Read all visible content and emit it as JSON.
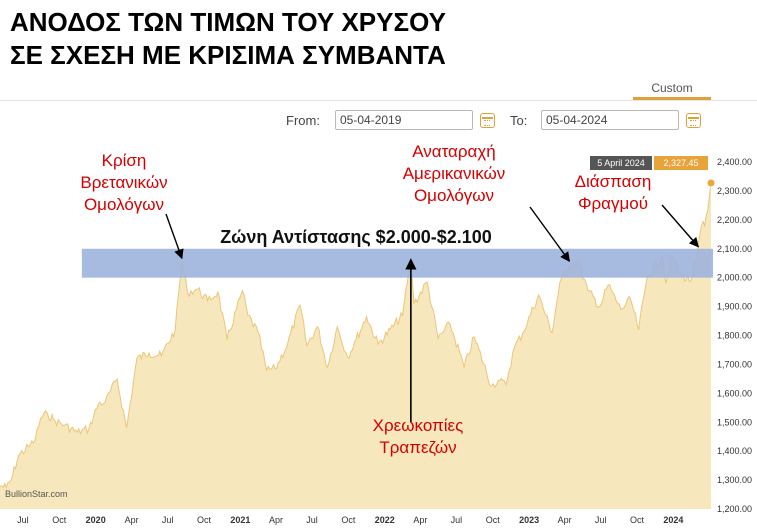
{
  "title": {
    "line1": "ΑΝΟΔΟΣ ΤΩΝ ΤΙΜΩΝ ΤΟΥ ΧΡΥΣΟΥ",
    "line2": "ΣΕ ΣΧΕΣΗ ΜΕ ΚΡΙΣΙΜΑ ΣΥΜΒΑΝΤΑ"
  },
  "controls": {
    "custom_tab": "Custom",
    "from_label": "From:",
    "from_value": "05-04-2019",
    "to_label": "To:",
    "to_value": "05-04-2024"
  },
  "watermark": "BullionStar.com",
  "tooltip": {
    "date": "5 April 2024",
    "value": "2,327.45"
  },
  "colors": {
    "fill": "#f7e7bd",
    "line": "#edc57a",
    "zone": "#9db3dc",
    "annotation": "#d40000",
    "marker": "#f0a43c",
    "tooltip_value_bg": "#e8a33a"
  },
  "chart_data": {
    "type": "area",
    "x_range": [
      "2019-05-04",
      "2024-04-05"
    ],
    "ylim": [
      1200,
      2400
    ],
    "y_ticks": [
      1200,
      1300,
      1400,
      1500,
      1600,
      1700,
      1800,
      1900,
      2000,
      2100,
      2200,
      2300,
      2400
    ],
    "y_tick_labels": [
      "1,200.00",
      "1,300.00",
      "1,400.00",
      "1,500.00",
      "1,600.00",
      "1,700.00",
      "1,800.00",
      "1,900.00",
      "2,000.00",
      "2,100.00",
      "2,200.00",
      "2,300.00",
      "2,400.00"
    ],
    "x_ticks": [
      {
        "date": "2019-07-01",
        "label": "Jul",
        "year": false
      },
      {
        "date": "2019-10-01",
        "label": "Oct",
        "year": false
      },
      {
        "date": "2020-01-01",
        "label": "2020",
        "year": true
      },
      {
        "date": "2020-04-01",
        "label": "Apr",
        "year": false
      },
      {
        "date": "2020-07-01",
        "label": "Jul",
        "year": false
      },
      {
        "date": "2020-10-01",
        "label": "Oct",
        "year": false
      },
      {
        "date": "2021-01-01",
        "label": "2021",
        "year": true
      },
      {
        "date": "2021-04-01",
        "label": "Apr",
        "year": false
      },
      {
        "date": "2021-07-01",
        "label": "Jul",
        "year": false
      },
      {
        "date": "2021-10-01",
        "label": "Oct",
        "year": false
      },
      {
        "date": "2022-01-01",
        "label": "2022",
        "year": true
      },
      {
        "date": "2022-04-01",
        "label": "Apr",
        "year": false
      },
      {
        "date": "2022-07-01",
        "label": "Jul",
        "year": false
      },
      {
        "date": "2022-10-01",
        "label": "Oct",
        "year": false
      },
      {
        "date": "2023-01-01",
        "label": "2023",
        "year": true
      },
      {
        "date": "2023-04-01",
        "label": "Apr",
        "year": false
      },
      {
        "date": "2023-07-01",
        "label": "Jul",
        "year": false
      },
      {
        "date": "2023-10-01",
        "label": "Oct",
        "year": false
      },
      {
        "date": "2024-01-01",
        "label": "2024",
        "year": true
      }
    ],
    "series": [
      {
        "values": [
          [
            "2019-05-04",
            1280
          ],
          [
            "2019-05-20",
            1275
          ],
          [
            "2019-06-01",
            1300
          ],
          [
            "2019-06-20",
            1385
          ],
          [
            "2019-07-15",
            1415
          ],
          [
            "2019-08-01",
            1440
          ],
          [
            "2019-08-15",
            1515
          ],
          [
            "2019-09-01",
            1530
          ],
          [
            "2019-09-20",
            1505
          ],
          [
            "2019-10-15",
            1490
          ],
          [
            "2019-11-15",
            1465
          ],
          [
            "2019-12-15",
            1478
          ],
          [
            "2020-01-08",
            1565
          ],
          [
            "2020-01-25",
            1570
          ],
          [
            "2020-02-24",
            1650
          ],
          [
            "2020-03-19",
            1480
          ],
          [
            "2020-04-14",
            1720
          ],
          [
            "2020-05-15",
            1740
          ],
          [
            "2020-06-15",
            1730
          ],
          [
            "2020-07-20",
            1820
          ],
          [
            "2020-08-06",
            2060
          ],
          [
            "2020-08-20",
            1950
          ],
          [
            "2020-09-15",
            1960
          ],
          [
            "2020-10-10",
            1920
          ],
          [
            "2020-11-05",
            1950
          ],
          [
            "2020-11-28",
            1785
          ],
          [
            "2021-01-06",
            1955
          ],
          [
            "2021-01-20",
            1870
          ],
          [
            "2021-02-15",
            1810
          ],
          [
            "2021-03-08",
            1680
          ],
          [
            "2021-03-30",
            1685
          ],
          [
            "2021-04-30",
            1770
          ],
          [
            "2021-06-01",
            1905
          ],
          [
            "2021-06-18",
            1765
          ],
          [
            "2021-07-15",
            1830
          ],
          [
            "2021-08-09",
            1690
          ],
          [
            "2021-09-03",
            1830
          ],
          [
            "2021-09-29",
            1725
          ],
          [
            "2021-10-20",
            1785
          ],
          [
            "2021-11-16",
            1865
          ],
          [
            "2021-12-15",
            1770
          ],
          [
            "2022-01-15",
            1820
          ],
          [
            "2022-02-15",
            1870
          ],
          [
            "2022-03-08",
            2070
          ],
          [
            "2022-03-16",
            1910
          ],
          [
            "2022-04-18",
            1985
          ],
          [
            "2022-05-16",
            1790
          ],
          [
            "2022-06-15",
            1840
          ],
          [
            "2022-07-21",
            1690
          ],
          [
            "2022-08-15",
            1795
          ],
          [
            "2022-09-28",
            1625
          ],
          [
            "2022-10-15",
            1645
          ],
          [
            "2022-11-03",
            1630
          ],
          [
            "2022-11-25",
            1760
          ],
          [
            "2022-12-15",
            1805
          ],
          [
            "2023-01-25",
            1940
          ],
          [
            "2023-02-28",
            1810
          ],
          [
            "2023-03-20",
            1985
          ],
          [
            "2023-04-13",
            2040
          ],
          [
            "2023-05-04",
            2060
          ],
          [
            "2023-05-30",
            1955
          ],
          [
            "2023-06-29",
            1900
          ],
          [
            "2023-07-20",
            1975
          ],
          [
            "2023-08-21",
            1890
          ],
          [
            "2023-09-15",
            1925
          ],
          [
            "2023-10-05",
            1820
          ],
          [
            "2023-10-27",
            2005
          ],
          [
            "2023-12-04",
            2075
          ],
          [
            "2023-12-13",
            1980
          ],
          [
            "2023-12-28",
            2075
          ],
          [
            "2024-01-18",
            2010
          ],
          [
            "2024-02-14",
            1990
          ],
          [
            "2024-03-01",
            2080
          ],
          [
            "2024-03-12",
            2180
          ],
          [
            "2024-03-20",
            2180
          ],
          [
            "2024-03-28",
            2235
          ],
          [
            "2024-04-05",
            2327.45
          ]
        ]
      }
    ],
    "resistance_zone": {
      "y_from": 2000,
      "y_to": 2100,
      "x_from": "2019-11-27",
      "label": "Ζώνη Αντίστασης $2.000-$2.100"
    },
    "annotations": [
      {
        "lines": [
          "Κρίση",
          "Βρετανικών",
          "Ομολόγων"
        ],
        "arrow_to": [
          "2020-08-06",
          2060
        ]
      },
      {
        "lines": [
          "Χρεωκοπίες",
          "Τραπεζών"
        ],
        "arrow_to": [
          "2022-03-08",
          2070
        ]
      },
      {
        "lines": [
          "Αναταραχή",
          "Αμερικανικών",
          "Ομολόγων"
        ],
        "arrow_to": [
          "2023-04-13",
          2050
        ]
      },
      {
        "lines": [
          "Διάσπαση",
          "Φραγμού"
        ],
        "arrow_to": [
          "2024-03-04",
          2100
        ]
      }
    ]
  }
}
